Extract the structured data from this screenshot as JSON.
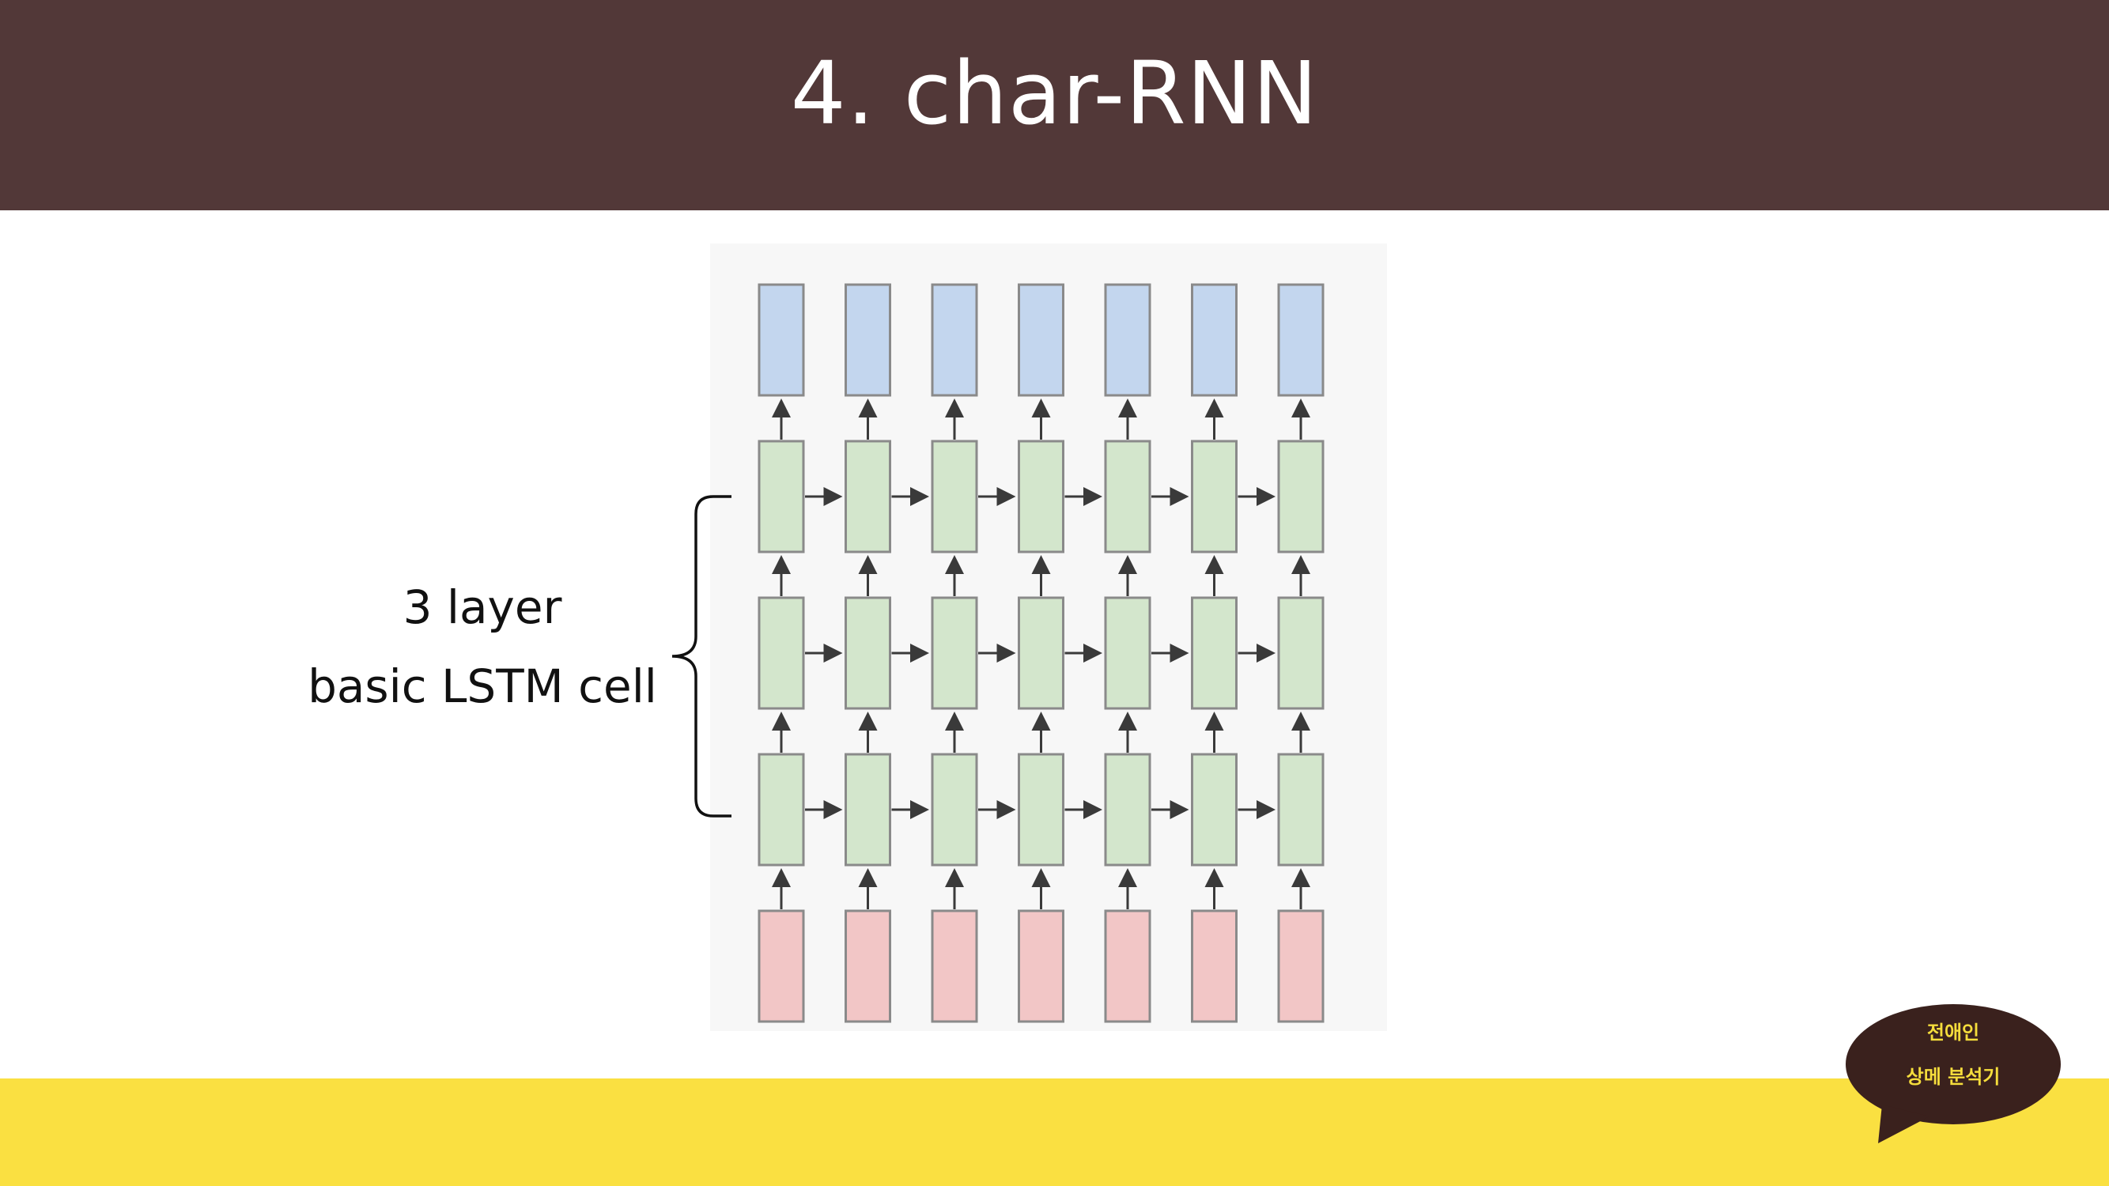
{
  "slide": {
    "title": "4. char-RNN"
  },
  "label": {
    "line1": "3 layer",
    "line2": "basic LSTM cell"
  },
  "badge": {
    "line1": "전애인",
    "line2": "상메 분석기"
  },
  "colors": {
    "header": "#523838",
    "footer": "#fae041",
    "output_cell": "#c3d6ee",
    "hidden_cell": "#d3e6cc",
    "input_cell": "#f2c6c6",
    "badge": "#3a211d",
    "badge_text": "#f5dd3c"
  },
  "diagram": {
    "timesteps": 7,
    "hidden_layers": 3,
    "rows": [
      "output",
      "hidden",
      "hidden",
      "hidden",
      "input"
    ]
  }
}
